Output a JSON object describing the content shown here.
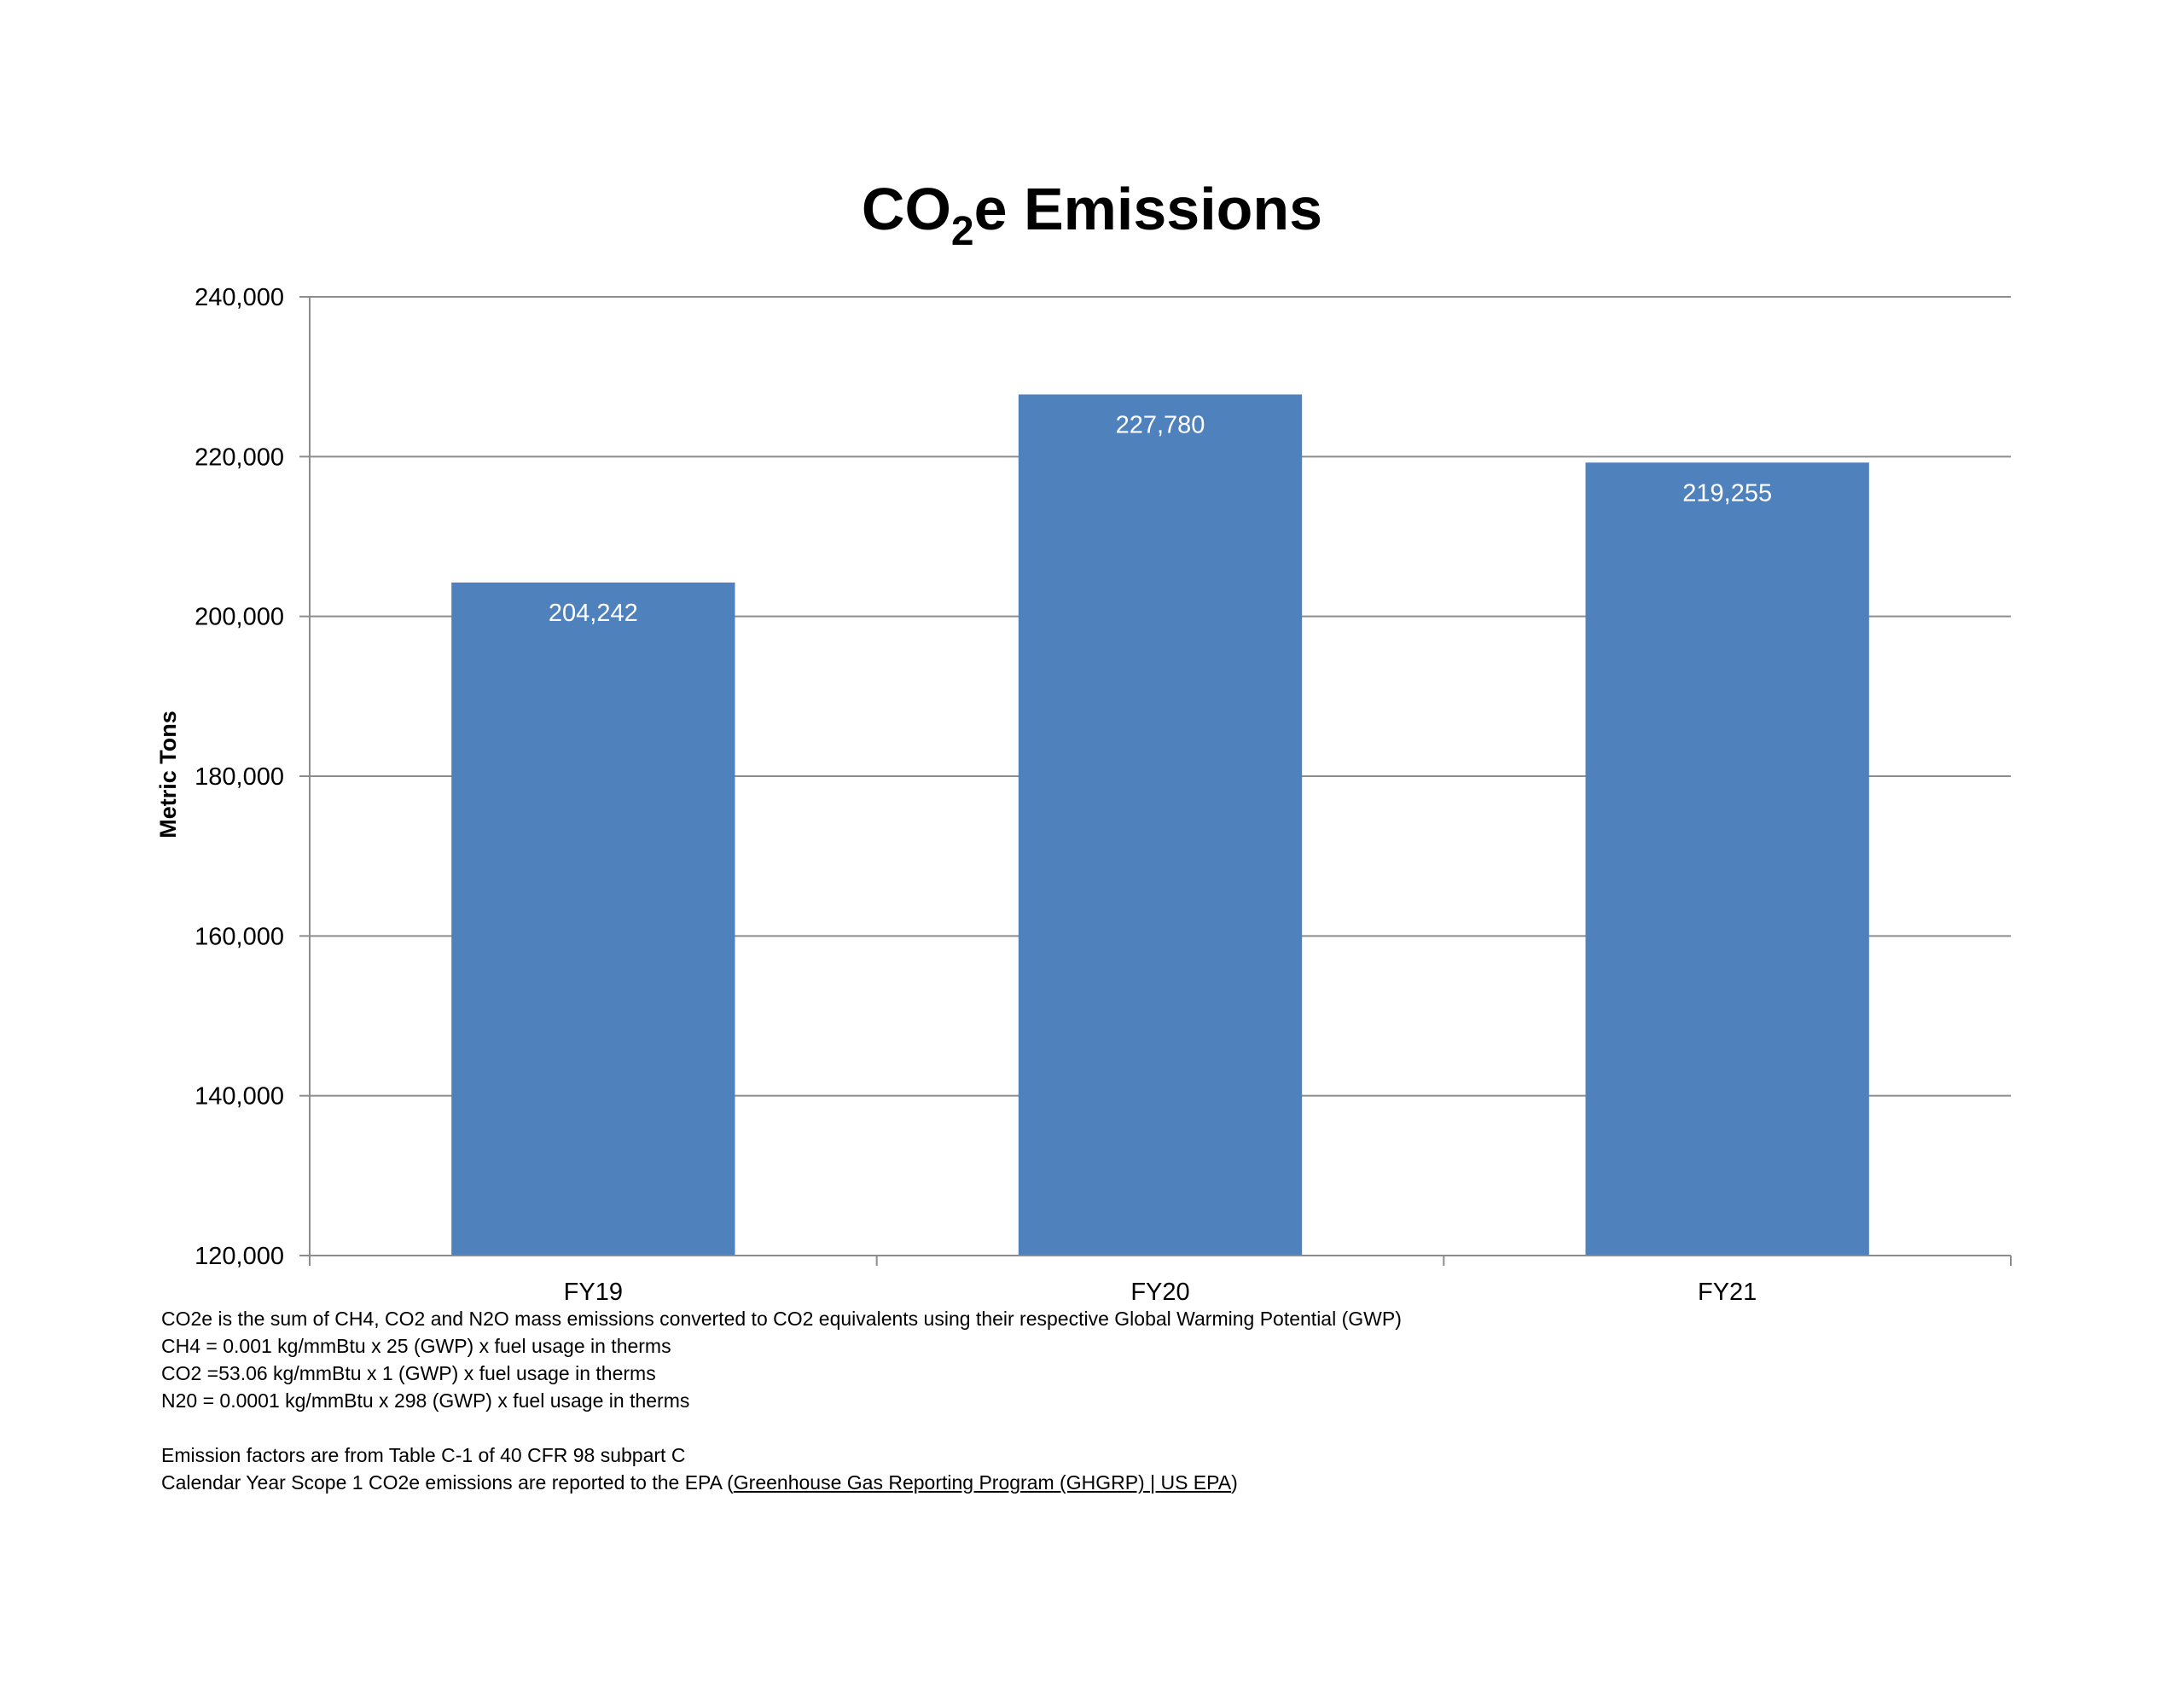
{
  "chart_data": {
    "type": "bar",
    "title_parts": [
      "CO",
      "2",
      "e Emissions"
    ],
    "ylabel": "Metric Tons",
    "xlabel": "",
    "categories": [
      "FY19",
      "FY20",
      "FY21"
    ],
    "values": [
      204242,
      227780,
      219255
    ],
    "value_labels": [
      "204,242",
      "227,780",
      "219,255"
    ],
    "ylim": [
      120000,
      240000
    ],
    "yticks": [
      120000,
      140000,
      160000,
      180000,
      200000,
      220000,
      240000
    ],
    "ytick_labels": [
      "120,000",
      "140,000",
      "160,000",
      "180,000",
      "200,000",
      "220,000",
      "240,000"
    ],
    "grid": true,
    "bar_color": "#4f81bd",
    "legend": "none"
  },
  "notes": {
    "line1": "CO2e is the sum of CH4, CO2 and N2O mass emissions converted to CO2 equivalents using their respective Global Warming Potential (GWP)",
    "line2": "CH4 = 0.001 kg/mmBtu x 25 (GWP) x fuel usage in therms",
    "line3": "CO2 =53.06 kg/mmBtu x 1 (GWP) x fuel usage in therms",
    "line4": "N20 = 0.0001 kg/mmBtu x 298 (GWP) x fuel usage in therms",
    "line5": "Emission factors are from Table C-1 of 40 CFR 98 subpart C",
    "line6_prefix": "Calendar Year Scope 1 CO2e emissions are reported to the EPA (",
    "line6_link": "Greenhouse Gas Reporting Program (GHGRP) | US EPA",
    "line6_suffix": ")"
  }
}
